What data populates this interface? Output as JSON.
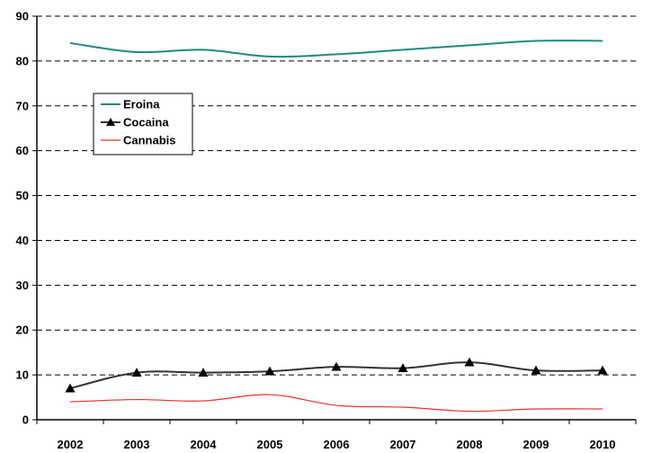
{
  "chart_data": {
    "type": "line",
    "title": "",
    "xlabel": "",
    "ylabel": "",
    "categories": [
      "2002",
      "2003",
      "2004",
      "2005",
      "2006",
      "2007",
      "2008",
      "2009",
      "2010"
    ],
    "ylim": [
      0,
      90
    ],
    "yticks": [
      0,
      10,
      20,
      30,
      40,
      50,
      60,
      70,
      80,
      90
    ],
    "grid": "horizontal-dashed",
    "legend_position": "top-left",
    "series": [
      {
        "name": "Eroina",
        "values": [
          84,
          82,
          82.5,
          81,
          81.5,
          82.5,
          83.5,
          84.5,
          84.5
        ],
        "color": "#1f8a80",
        "marker": "none"
      },
      {
        "name": "Cocaina",
        "values": [
          7,
          10.5,
          10.5,
          10.8,
          11.8,
          11.5,
          12.8,
          11,
          11
        ],
        "color": "#333333",
        "marker": "triangle"
      },
      {
        "name": "Cannabis",
        "values": [
          4,
          4.5,
          4.2,
          5.6,
          3.2,
          2.8,
          1.9,
          2.4,
          2.4
        ],
        "color": "#e8312a",
        "marker": "none"
      }
    ]
  }
}
